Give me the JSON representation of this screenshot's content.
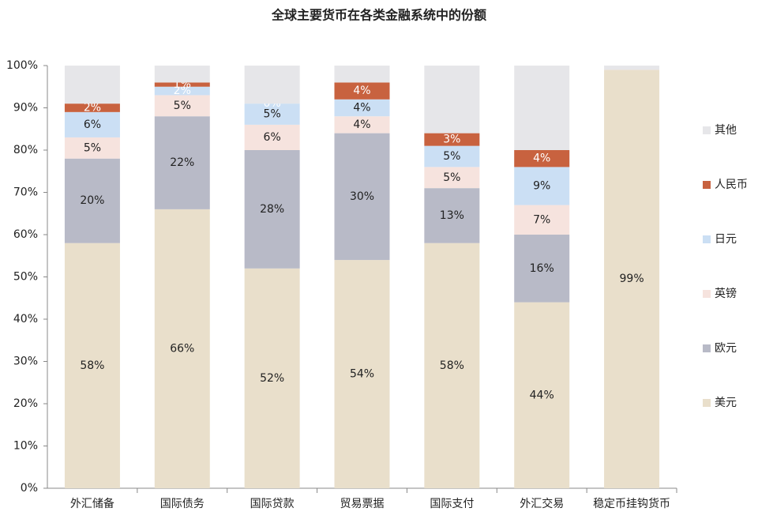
{
  "chart_data": {
    "type": "stacked_bar",
    "title": "全球主要货币在各类金融系统中的份额",
    "categories": [
      "外汇储备",
      "国际债务",
      "国际贷款",
      "贸易票据",
      "国际支付",
      "外汇交易",
      "稳定币挂钩货币"
    ],
    "series": [
      {
        "name": "美元",
        "color": "#e9dfcb",
        "values": [
          58,
          66,
          52,
          54,
          58,
          44,
          99
        ],
        "value_labels": [
          "58%",
          "66%",
          "52%",
          "54%",
          "58%",
          "44%",
          "99%"
        ]
      },
      {
        "name": "欧元",
        "color": "#b8bac7",
        "values": [
          20,
          22,
          28,
          30,
          13,
          16,
          null
        ],
        "value_labels": [
          "20%",
          "22%",
          "28%",
          "30%",
          "13%",
          "16%",
          null
        ]
      },
      {
        "name": "英镑",
        "color": "#f6e3de",
        "values": [
          5,
          5,
          6,
          4,
          5,
          7,
          null
        ],
        "value_labels": [
          "5%",
          "5%",
          "6%",
          "4%",
          "5%",
          "7%",
          null
        ]
      },
      {
        "name": "日元",
        "color": "#cbdff4",
        "values": [
          6,
          2,
          5,
          4,
          5,
          9,
          null
        ],
        "value_labels": [
          "6%",
          "2%",
          "5%",
          "4%",
          "5%",
          "9%",
          null
        ]
      },
      {
        "name": "人民币",
        "color": "#c8623f",
        "values": [
          2,
          1,
          0,
          4,
          3,
          4,
          null
        ],
        "value_labels": [
          "2%",
          "1%",
          "0%",
          "4%",
          "3%",
          "4%",
          null
        ]
      },
      {
        "name": "其他",
        "color": "#e6e6e9",
        "values": [
          9,
          4,
          9,
          4,
          16,
          20,
          1
        ]
      }
    ],
    "ylim": [
      0,
      100
    ],
    "yticks": [
      {
        "value": 0,
        "label": "0%"
      },
      {
        "value": 10,
        "label": "10%"
      },
      {
        "value": 20,
        "label": "20%"
      },
      {
        "value": 30,
        "label": "30%"
      },
      {
        "value": 40,
        "label": "40%"
      },
      {
        "value": 50,
        "label": "50%"
      },
      {
        "value": 60,
        "label": "60%"
      },
      {
        "value": 70,
        "label": "70%"
      },
      {
        "value": 80,
        "label": "80%"
      },
      {
        "value": 90,
        "label": "90%"
      },
      {
        "value": 100,
        "label": "100%"
      }
    ],
    "legend": "right"
  }
}
